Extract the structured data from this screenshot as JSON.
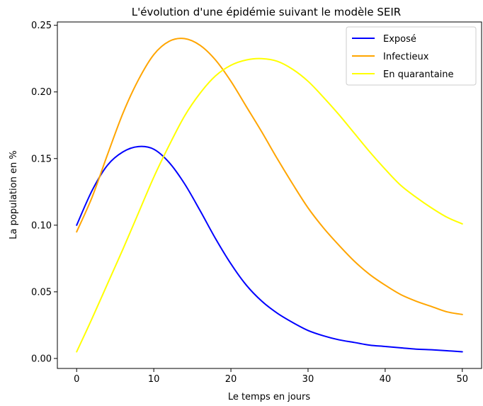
{
  "chart_data": {
    "type": "line",
    "title": "L'évolution d'une épidémie suivant le modèle SEIR",
    "xlabel": "Le temps en jours",
    "ylabel": "La population en %",
    "xlim": [
      -2.5,
      52.5
    ],
    "ylim": [
      -0.0075,
      0.2525
    ],
    "xticks": [
      "0",
      "10",
      "20",
      "30",
      "40",
      "50"
    ],
    "yticks": [
      "0.00",
      "0.05",
      "0.10",
      "0.15",
      "0.20",
      "0.25"
    ],
    "grid": false,
    "legend_position": "top-right",
    "x": [
      0,
      2,
      4,
      6,
      8,
      10,
      12,
      14,
      16,
      18,
      20,
      22,
      24,
      26,
      28,
      30,
      32,
      34,
      36,
      38,
      40,
      42,
      44,
      46,
      48,
      50
    ],
    "series": [
      {
        "name": "Exposé",
        "color": "#0000ff",
        "values": [
          0.1,
          0.126,
          0.145,
          0.155,
          0.159,
          0.157,
          0.147,
          0.131,
          0.111,
          0.09,
          0.071,
          0.055,
          0.043,
          0.034,
          0.027,
          0.021,
          0.017,
          0.014,
          0.012,
          0.01,
          0.009,
          0.008,
          0.007,
          0.0065,
          0.0058,
          0.005
        ]
      },
      {
        "name": "Infectieux",
        "color": "#ffa500",
        "values": [
          0.095,
          0.121,
          0.153,
          0.184,
          0.209,
          0.228,
          0.238,
          0.24,
          0.235,
          0.224,
          0.208,
          0.189,
          0.17,
          0.15,
          0.131,
          0.113,
          0.098,
          0.085,
          0.073,
          0.063,
          0.055,
          0.048,
          0.043,
          0.039,
          0.035,
          0.033
        ]
      },
      {
        "name": "En quarantaine",
        "color": "#ffff00",
        "values": [
          0.005,
          0.03,
          0.056,
          0.082,
          0.109,
          0.136,
          0.16,
          0.182,
          0.199,
          0.212,
          0.22,
          0.224,
          0.225,
          0.223,
          0.217,
          0.208,
          0.196,
          0.183,
          0.169,
          0.155,
          0.142,
          0.13,
          0.121,
          0.113,
          0.106,
          0.101
        ]
      }
    ]
  }
}
